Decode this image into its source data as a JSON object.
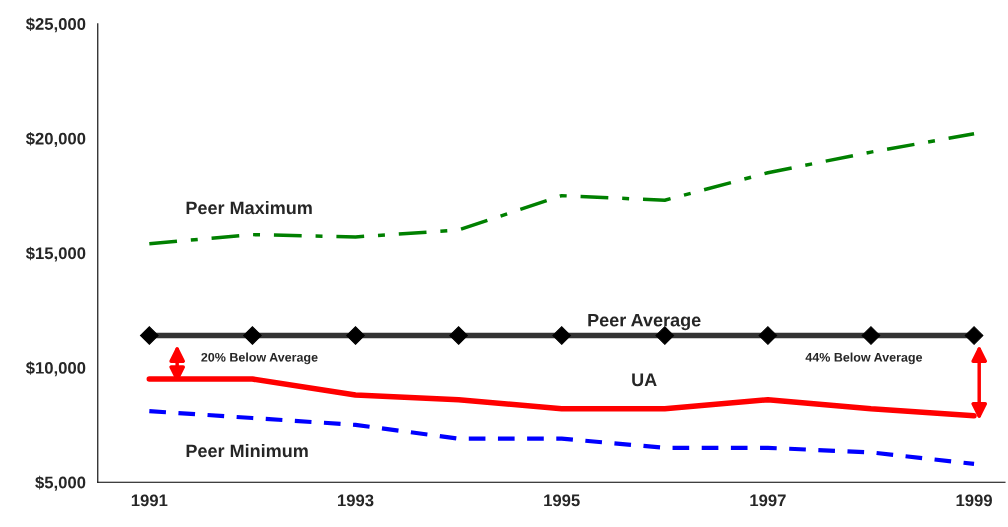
{
  "chart_data": {
    "type": "line",
    "x": [
      1991,
      1992,
      1993,
      1994,
      1995,
      1996,
      1997,
      1998,
      1999
    ],
    "series": [
      {
        "name": "Peer Maximum",
        "color": "#008000",
        "line_style": "dashdot",
        "marker": "none",
        "values": [
          15400,
          15800,
          15700,
          16000,
          17500,
          17300,
          18500,
          19400,
          20200
        ]
      },
      {
        "name": "Peer Average",
        "color": "#333333",
        "line_style": "solid",
        "marker": "diamond",
        "values": [
          11400,
          11400,
          11400,
          11400,
          11400,
          11400,
          11400,
          11400,
          11400
        ]
      },
      {
        "name": "UA",
        "color": "#ff0000",
        "line_style": "solid",
        "marker": "none",
        "values": [
          9500,
          9500,
          8800,
          8600,
          8200,
          8200,
          8600,
          8200,
          7900
        ]
      },
      {
        "name": "Peer Minimum",
        "color": "#0000ff",
        "line_style": "dashed",
        "marker": "none",
        "values": [
          8100,
          7800,
          7500,
          6900,
          6900,
          6500,
          6500,
          6300,
          5800
        ]
      }
    ],
    "annotations": [
      "20% Below Average",
      "44% Below Average"
    ],
    "xlim": [
      1990.5,
      1999.3
    ],
    "xticks": [
      1991,
      1993,
      1995,
      1997,
      1999
    ],
    "ylim": [
      5000,
      25000
    ],
    "yticks": [
      {
        "value": 5000,
        "label": "$5,000"
      },
      {
        "value": 10000,
        "label": "$10,000"
      },
      {
        "value": 15000,
        "label": "$15,000"
      },
      {
        "value": 20000,
        "label": "$20,000"
      },
      {
        "value": 25000,
        "label": "$25,000"
      }
    ],
    "grid": false,
    "legend": false
  }
}
